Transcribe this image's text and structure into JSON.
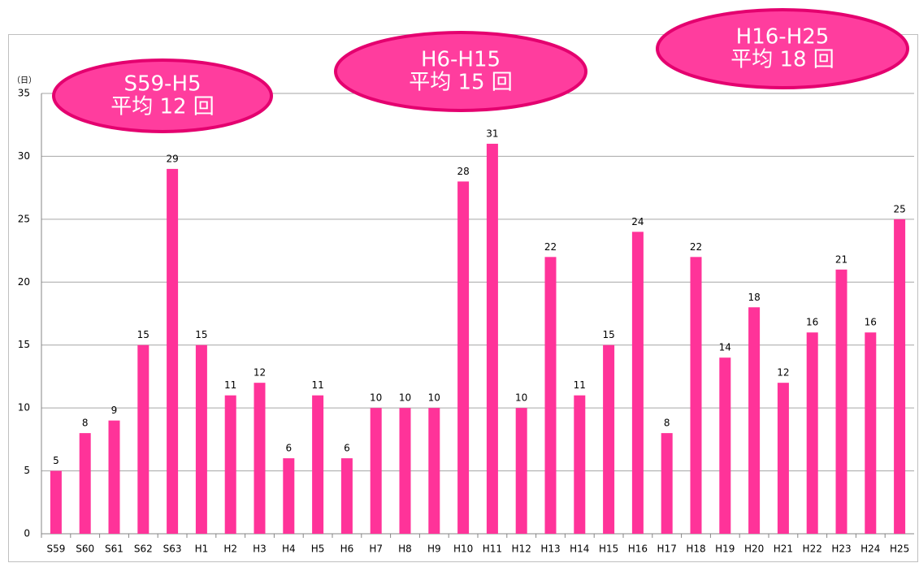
{
  "chart_data": {
    "type": "bar",
    "y_axis_label": "（日）",
    "categories": [
      "S59",
      "S60",
      "S61",
      "S62",
      "S63",
      "H1",
      "H2",
      "H3",
      "H4",
      "H5",
      "H6",
      "H7",
      "H8",
      "H9",
      "H10",
      "H11",
      "H12",
      "H13",
      "H14",
      "H15",
      "H16",
      "H17",
      "H18",
      "H19",
      "H20",
      "H21",
      "H22",
      "H23",
      "H24",
      "H25"
    ],
    "values": [
      5,
      8,
      9,
      15,
      29,
      15,
      11,
      12,
      6,
      11,
      6,
      10,
      10,
      10,
      28,
      31,
      10,
      22,
      11,
      15,
      24,
      8,
      22,
      14,
      18,
      12,
      16,
      21,
      16,
      25
    ],
    "color": "#ff3399",
    "ylim": [
      0,
      35
    ],
    "yticks": [
      0,
      5,
      10,
      15,
      20,
      25,
      30,
      35
    ],
    "grid": true,
    "annotations": [
      {
        "lines": [
          "S59-H5",
          "平均 12 回"
        ]
      },
      {
        "lines": [
          "H6-H15",
          "平均 15 回"
        ]
      },
      {
        "lines": [
          "H16-H25",
          "平均 18 回"
        ]
      }
    ]
  }
}
